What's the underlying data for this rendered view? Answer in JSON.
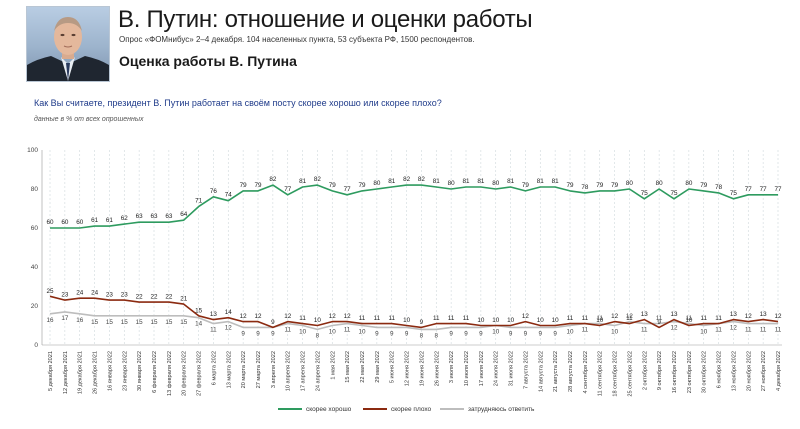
{
  "header": {
    "title": "В. Путин: отношение и оценки работы",
    "subtitle": "Опрос «ФОМнибус» 2–4 декабря. 104 населенных пункта, 53 субъекта РФ, 1500 респондентов.",
    "section_title": "Оценка работы В. Путина"
  },
  "question": "Как Вы считаете, президент В. Путин работает на своём посту скорее хорошо или скорее плохо?",
  "note": "данные в % от всех опрошенных",
  "colors": {
    "good": "#2e9b5f",
    "bad": "#8b2a10",
    "hard": "#bdbdbd",
    "grid": "#cfd8dc"
  },
  "chart_data": {
    "type": "line",
    "ylim": [
      0,
      100
    ],
    "yticks": [
      0,
      20,
      40,
      60,
      80,
      100
    ],
    "grid": "vertical-dashed",
    "legend_position": "bottom",
    "x": [
      "5 декабря 2021",
      "12 декабря 2021",
      "19 декабря 2021",
      "26 декабря 2021",
      "16 января 2022",
      "23 января 2022",
      "30 января 2022",
      "6 февраля 2022",
      "13 февраля 2022",
      "20 февраля 2022",
      "27 февраля 2022",
      "6 марта 2022",
      "13 марта 2022",
      "20 марта 2022",
      "27 марта 2022",
      "3 апреля 2022",
      "10 апреля 2022",
      "17 апреля 2022",
      "24 апреля 2022",
      "1 мая 2022",
      "15 мая 2022",
      "22 мая 2022",
      "29 мая 2022",
      "5 июня 2022",
      "12 июня 2022",
      "19 июня 2022",
      "26 июня 2022",
      "3 июля 2022",
      "10 июля 2022",
      "17 июля 2022",
      "24 июля 2022",
      "31 июля 2022",
      "7 августа 2022",
      "14 августа 2022",
      "21 августа 2022",
      "28 августа 2022",
      "4 сентября 2022",
      "11 сентября 2022",
      "18 сентября 2022",
      "25 сентября 2022",
      "2 октября 2022",
      "9 октября 2022",
      "16 октября 2022",
      "23 октября 2022",
      "30 октября 2022",
      "6 ноября 2022",
      "13 ноября 2022",
      "20 ноября 2022",
      "27 ноября 2022",
      "4 декабря 2022"
    ],
    "series": [
      {
        "name": "скорее хорошо",
        "values": [
          60,
          60,
          60,
          61,
          61,
          62,
          63,
          63,
          63,
          64,
          71,
          76,
          74,
          79,
          79,
          82,
          77,
          81,
          82,
          79,
          77,
          79,
          80,
          81,
          82,
          82,
          81,
          80,
          81,
          81,
          80,
          81,
          79,
          81,
          81,
          79,
          78,
          79,
          79,
          80,
          75,
          80,
          75,
          80,
          79,
          78,
          75,
          77,
          77,
          77
        ]
      },
      {
        "name": "скорее плохо",
        "values": [
          25,
          23,
          24,
          24,
          23,
          23,
          22,
          22,
          22,
          21,
          15,
          13,
          14,
          12,
          12,
          9,
          12,
          11,
          10,
          12,
          12,
          11,
          11,
          11,
          10,
          9,
          11,
          11,
          11,
          10,
          10,
          10,
          12,
          10,
          10,
          11,
          11,
          10,
          12,
          11,
          13,
          9,
          13,
          10,
          11,
          11,
          13,
          12,
          13,
          12
        ]
      },
      {
        "name": "затрудняюсь ответить",
        "values": [
          16,
          17,
          16,
          15,
          15,
          15,
          15,
          15,
          15,
          15,
          14,
          11,
          12,
          9,
          9,
          9,
          11,
          10,
          8,
          10,
          11,
          10,
          9,
          9,
          9,
          8,
          8,
          9,
          9,
          9,
          10,
          9,
          9,
          9,
          9,
          10,
          11,
          11,
          10,
          12,
          11,
          11,
          12,
          11,
          10,
          11,
          12,
          11,
          11,
          11
        ]
      }
    ]
  }
}
